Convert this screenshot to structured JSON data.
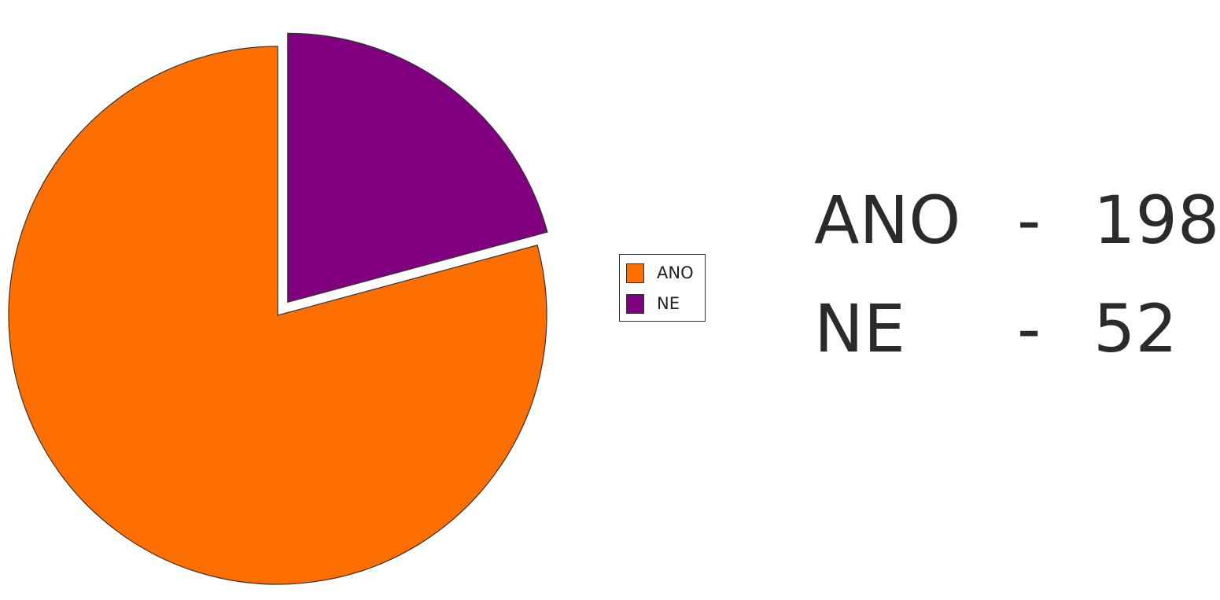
{
  "chart_data": {
    "type": "pie",
    "categories": [
      "ANO",
      "NE"
    ],
    "values": [
      198,
      52
    ],
    "colors": [
      "#ff6f00",
      "#800080"
    ],
    "exploded": [
      false,
      true
    ],
    "title": "",
    "legend": {
      "placement": "right",
      "entries": [
        "ANO",
        "NE"
      ]
    }
  },
  "summary": {
    "rows": [
      {
        "label": "ANO",
        "separator": "-",
        "value": "198"
      },
      {
        "label": "NE",
        "separator": "-",
        "value": "52"
      }
    ]
  }
}
